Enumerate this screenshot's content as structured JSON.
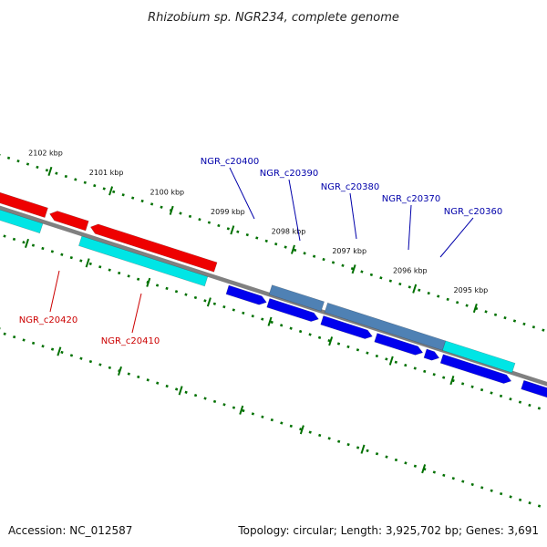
{
  "title": "Rhizobium sp. NGR234, complete genome",
  "footer": {
    "accession": "Accession: NC_012587",
    "topology": "Topology: circular; Length: 3,925,702 bp; Genes: 3,691"
  },
  "colors": {
    "forward_gene": "#0000ee",
    "reverse_gene": "#ee0000",
    "cds": "#00e5e5",
    "feature": "#4f81b4",
    "backbone": "#808080",
    "tick": "#007000",
    "forward_label": "#0000aa",
    "reverse_label": "#cc0000"
  },
  "ticks": [
    "2102 kbp",
    "2101 kbp",
    "2100 kbp",
    "2099 kbp",
    "2098 kbp",
    "2097 kbp",
    "2096 kbp",
    "2095 kbp"
  ],
  "genes_forward": [
    "NGR_c20400",
    "NGR_c20390",
    "NGR_c20380",
    "NGR_c20370",
    "NGR_c20360"
  ],
  "genes_reverse": [
    "NGR_c20420",
    "NGR_c20410"
  ]
}
